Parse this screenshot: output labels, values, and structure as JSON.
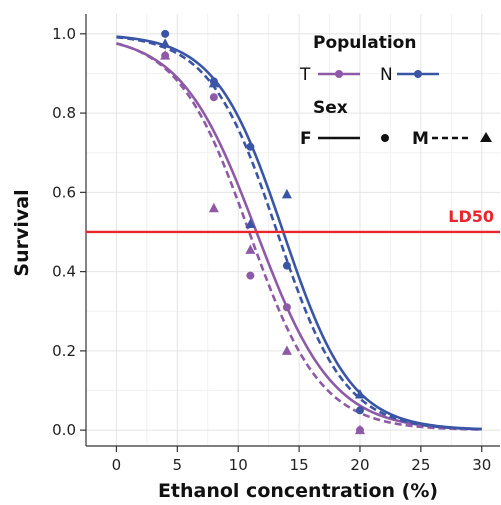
{
  "chart_data": {
    "type": "scatter",
    "xlabel": "Ethanol concentration (%)",
    "ylabel": "Survival",
    "xlim": [
      -2.5,
      31.5
    ],
    "ylim": [
      -0.04,
      1.05
    ],
    "xticks": [
      0,
      5,
      10,
      15,
      20,
      25,
      30
    ],
    "yticks": [
      0.0,
      0.2,
      0.4,
      0.6,
      0.8,
      1.0
    ],
    "x_tick_labels": [
      "0",
      "5",
      "10",
      "15",
      "20",
      "25",
      "30"
    ],
    "y_tick_labels": [
      "0.0",
      "0.2",
      "0.4",
      "0.6",
      "0.8",
      "1.0"
    ],
    "grid": true,
    "reference_line": {
      "label": "LD50",
      "y": 0.5,
      "color": "#e8262b"
    },
    "legend": {
      "placement": "top-right",
      "population_title": "Population",
      "population_keys": [
        {
          "label": "T",
          "color": "#8e5aa8"
        },
        {
          "label": "N",
          "color": "#3a55a6"
        }
      ],
      "sex_title": "Sex",
      "sex_keys": [
        {
          "label": "F",
          "linestyle": "solid",
          "marker": "circle"
        },
        {
          "label": "M",
          "linestyle": "dashed",
          "marker": "triangle"
        }
      ]
    },
    "series": [
      {
        "population": "T",
        "sex": "F",
        "color": "#8e5aa8",
        "linestyle": "solid",
        "marker": "circle",
        "points": [
          [
            4,
            0.945
          ],
          [
            8,
            0.84
          ],
          [
            11,
            0.39
          ],
          [
            14,
            0.31
          ],
          [
            20,
            0.0
          ]
        ],
        "curve": {
          "ld50": 11.5,
          "slope": 0.32
        }
      },
      {
        "population": "T",
        "sex": "M",
        "color": "#8e5aa8",
        "linestyle": "dashed",
        "marker": "triangle",
        "points": [
          [
            4,
            0.945
          ],
          [
            8,
            0.56
          ],
          [
            11,
            0.455
          ],
          [
            14,
            0.2
          ],
          [
            20,
            0.0
          ]
        ],
        "curve": {
          "ld50": 10.9,
          "slope": 0.34
        }
      },
      {
        "population": "N",
        "sex": "F",
        "color": "#3a55a6",
        "linestyle": "solid",
        "marker": "circle",
        "points": [
          [
            4,
            1.0
          ],
          [
            8,
            0.88
          ],
          [
            11,
            0.715
          ],
          [
            14,
            0.415
          ],
          [
            20,
            0.05
          ]
        ],
        "curve": {
          "ld50": 13.7,
          "slope": 0.36
        }
      },
      {
        "population": "N",
        "sex": "M",
        "color": "#3a55a6",
        "linestyle": "dashed",
        "marker": "triangle",
        "points": [
          [
            4,
            0.975
          ],
          [
            8,
            0.875
          ],
          [
            11,
            0.52
          ],
          [
            14,
            0.595
          ],
          [
            20,
            0.09
          ]
        ],
        "curve": {
          "ld50": 13.2,
          "slope": 0.36
        }
      }
    ]
  }
}
